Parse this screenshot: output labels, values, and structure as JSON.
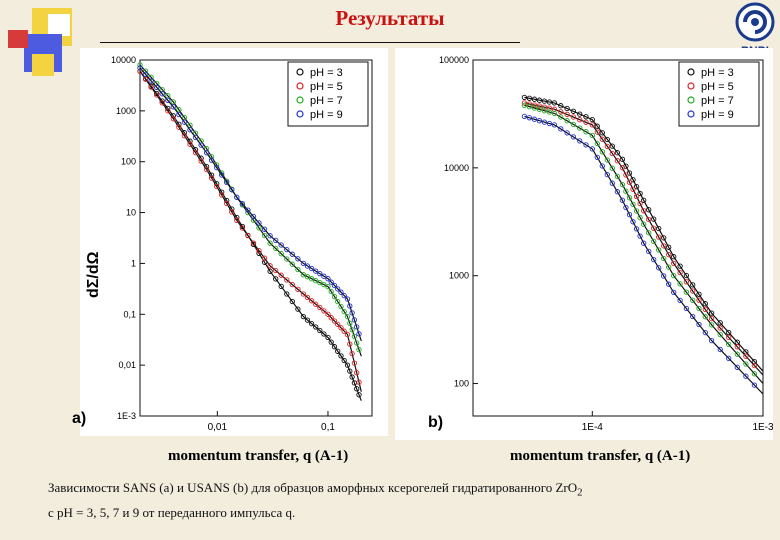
{
  "slide": {
    "title": "Результаты",
    "logo_text": "PNPI",
    "caption_line1": "Зависимости SANS (a) и USANS (b) для образцов аморфных ксерогелей гидратированного ZrO",
    "caption_line1_sub": "2",
    "caption_line2": "с pH = 3, 5, 7 и 9 от переданного импульса q.",
    "panel_a_label": "a)",
    "panel_b_label": "b)",
    "colors": {
      "title": "#cc1111",
      "ph3": "#111111",
      "ph5": "#dd2222",
      "ph7": "#22aa22",
      "ph9": "#2233cc"
    }
  },
  "chart_data": [
    {
      "type": "scatter",
      "panel": "a",
      "xlabel": "momentum transfer, q (A-1)",
      "ylabel": "dΣ/dΩ",
      "xscale": "log",
      "yscale": "log",
      "xlim": [
        0.002,
        0.25
      ],
      "ylim": [
        0.001,
        10000
      ],
      "x_ticks": [
        "0,01",
        "0,1"
      ],
      "y_ticks": [
        "1E-3",
        "0,01",
        "0,1",
        "1",
        "10",
        "100",
        "1000",
        "10000"
      ],
      "legend": [
        "pH = 3",
        "pH = 5",
        "pH = 7",
        "pH = 9"
      ],
      "legend_position": "top-right",
      "series": [
        {
          "name": "pH = 3",
          "color": "#111111",
          "x": [
            0.002,
            0.004,
            0.008,
            0.015,
            0.03,
            0.06,
            0.1,
            0.15,
            0.2
          ],
          "y": [
            6000,
            800,
            80,
            8,
            0.7,
            0.09,
            0.035,
            0.01,
            0.002
          ]
        },
        {
          "name": "pH = 5",
          "color": "#dd2222",
          "x": [
            0.002,
            0.004,
            0.008,
            0.015,
            0.03,
            0.06,
            0.1,
            0.15,
            0.2
          ],
          "y": [
            6000,
            700,
            70,
            7,
            0.9,
            0.25,
            0.1,
            0.04,
            0.003
          ]
        },
        {
          "name": "pH = 7",
          "color": "#22aa22",
          "x": [
            0.002,
            0.004,
            0.008,
            0.015,
            0.03,
            0.06,
            0.1,
            0.15,
            0.2
          ],
          "y": [
            8000,
            1500,
            180,
            20,
            2.5,
            0.6,
            0.35,
            0.09,
            0.015
          ]
        },
        {
          "name": "pH = 9",
          "color": "#2233cc",
          "x": [
            0.002,
            0.004,
            0.008,
            0.015,
            0.03,
            0.06,
            0.1,
            0.15,
            0.2
          ],
          "y": [
            7000,
            1200,
            150,
            20,
            3.5,
            1.0,
            0.5,
            0.2,
            0.03
          ]
        }
      ]
    },
    {
      "type": "scatter",
      "panel": "b",
      "xlabel": "momentum transfer, q (A-1)",
      "ylabel": "",
      "xscale": "log",
      "yscale": "log",
      "xlim": [
        2e-05,
        0.001
      ],
      "ylim": [
        50,
        100000
      ],
      "x_ticks": [
        "1E-4",
        "1E-3"
      ],
      "y_ticks": [
        "100",
        "1000",
        "10000",
        "100000"
      ],
      "legend": [
        "pH = 3",
        "pH = 5",
        "pH = 7",
        "pH = 9"
      ],
      "legend_position": "top-right",
      "series": [
        {
          "name": "pH = 3",
          "color": "#111111",
          "x": [
            4e-05,
            6e-05,
            0.0001,
            0.00015,
            0.0002,
            0.0003,
            0.0005,
            0.001
          ],
          "y": [
            45000,
            40000,
            28000,
            12000,
            5000,
            1500,
            450,
            130
          ]
        },
        {
          "name": "pH = 5",
          "color": "#dd2222",
          "x": [
            4e-05,
            6e-05,
            0.0001,
            0.00015,
            0.0002,
            0.0003,
            0.0005,
            0.001
          ],
          "y": [
            40000,
            35000,
            25000,
            10000,
            4000,
            1300,
            400,
            120
          ]
        },
        {
          "name": "pH = 7",
          "color": "#22aa22",
          "x": [
            4e-05,
            6e-05,
            0.0001,
            0.00015,
            0.0002,
            0.0003,
            0.0005,
            0.001
          ],
          "y": [
            38000,
            32000,
            20000,
            7000,
            3000,
            1000,
            350,
            100
          ]
        },
        {
          "name": "pH = 9",
          "color": "#2233cc",
          "x": [
            4e-05,
            6e-05,
            0.0001,
            0.00015,
            0.0002,
            0.0003,
            0.0005,
            0.001
          ],
          "y": [
            30000,
            25000,
            15000,
            5000,
            2000,
            700,
            250,
            80
          ]
        }
      ]
    }
  ]
}
